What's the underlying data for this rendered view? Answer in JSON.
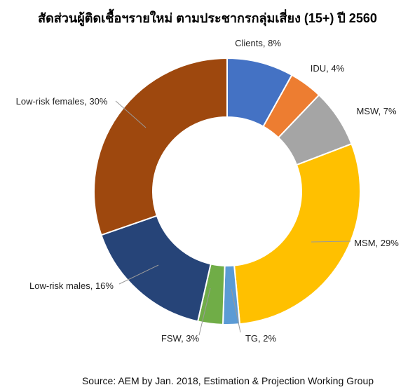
{
  "chart_data": {
    "type": "pie",
    "donut": true,
    "title": "สัดส่วนผู้ติดเชื้อฯรายใหม่ ตามประชากรกลุ่มเสี่ยง (15+) ปี 2560",
    "source": "Source: AEM by Jan. 2018, Estimation & Projection Working Group",
    "slices": [
      {
        "name": "Clients",
        "value": 8,
        "label": "Clients, 8%",
        "color": "#4472C4"
      },
      {
        "name": "IDU",
        "value": 4,
        "label": "IDU, 4%",
        "color": "#ED7D31"
      },
      {
        "name": "MSW",
        "value": 7,
        "label": "MSW, 7%",
        "color": "#A5A5A5"
      },
      {
        "name": "MSM",
        "value": 29,
        "label": "MSM, 29%",
        "color": "#FFC000"
      },
      {
        "name": "TG",
        "value": 2,
        "label": "TG, 2%",
        "color": "#5B9BD5"
      },
      {
        "name": "FSW",
        "value": 3,
        "label": "FSW, 3%",
        "color": "#70AD47"
      },
      {
        "name": "Low-risk males",
        "value": 16,
        "label": "Low-risk males, 16%",
        "color": "#264478"
      },
      {
        "name": "Low-risk females",
        "value": 30,
        "label": "Low-risk females, 30%",
        "color": "#9E480E"
      }
    ]
  }
}
